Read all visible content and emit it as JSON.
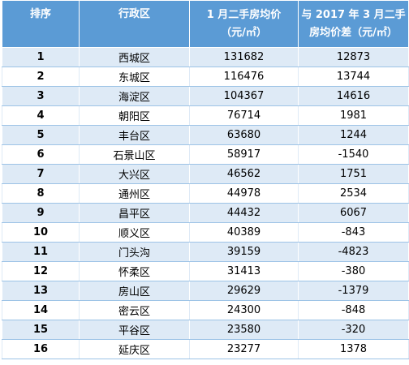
{
  "table": {
    "headers": {
      "rank": "排序",
      "district": "行政区",
      "price_line1": "1 月二手房均价",
      "price_line2": "（元/㎡）",
      "diff_line1": "与 2017 年 3 月二手",
      "diff_line2": "房均价差（元/㎡）"
    },
    "rows": [
      {
        "rank": "1",
        "district": "西城区",
        "price": "131682",
        "diff": "12873"
      },
      {
        "rank": "2",
        "district": "东城区",
        "price": "116476",
        "diff": "13744"
      },
      {
        "rank": "3",
        "district": "海淀区",
        "price": "104367",
        "diff": "14616"
      },
      {
        "rank": "4",
        "district": "朝阳区",
        "price": "76714",
        "diff": "1981"
      },
      {
        "rank": "5",
        "district": "丰台区",
        "price": "63680",
        "diff": "1244"
      },
      {
        "rank": "6",
        "district": "石景山区",
        "price": "58917",
        "diff": "-1540"
      },
      {
        "rank": "7",
        "district": "大兴区",
        "price": "46562",
        "diff": "1751"
      },
      {
        "rank": "8",
        "district": "通州区",
        "price": "44978",
        "diff": "2534"
      },
      {
        "rank": "9",
        "district": "昌平区",
        "price": "44432",
        "diff": "6067"
      },
      {
        "rank": "10",
        "district": "顺义区",
        "price": "40389",
        "diff": "-843"
      },
      {
        "rank": "11",
        "district": "门头沟",
        "price": "39159",
        "diff": "-4823"
      },
      {
        "rank": "12",
        "district": "怀柔区",
        "price": "31413",
        "diff": "-380"
      },
      {
        "rank": "13",
        "district": "房山区",
        "price": "29629",
        "diff": "-1379"
      },
      {
        "rank": "14",
        "district": "密云区",
        "price": "24300",
        "diff": "-848"
      },
      {
        "rank": "15",
        "district": "平谷区",
        "price": "23580",
        "diff": "-320"
      },
      {
        "rank": "16",
        "district": "延庆区",
        "price": "23277",
        "diff": "1378"
      }
    ]
  }
}
